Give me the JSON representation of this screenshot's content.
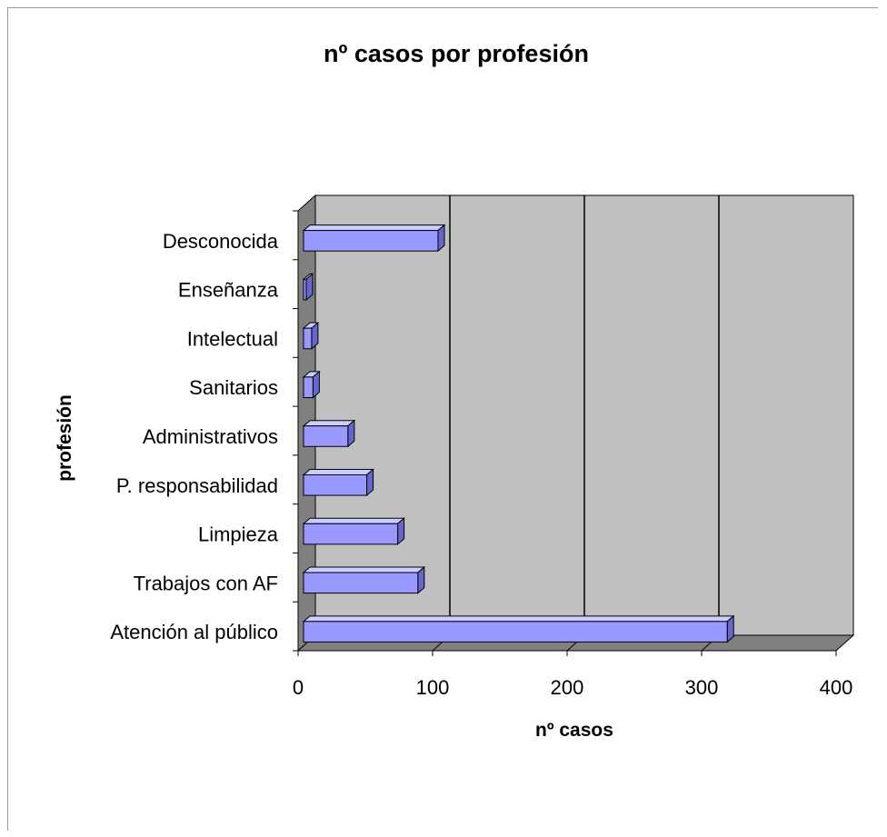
{
  "chart_data": {
    "type": "bar",
    "orientation": "horizontal",
    "style": "3d",
    "title": "nº casos por profesión",
    "xlabel": "nº casos",
    "ylabel": "profesión",
    "categories": [
      "Atención al público",
      "Trabajos con AF",
      "Limpieza",
      "P. responsabilidad",
      "Administrativos",
      "Sanitarios",
      "Intelectual",
      "Enseñanza",
      "Desconocida"
    ],
    "values": [
      315,
      85,
      70,
      47,
      33,
      7,
      6,
      2,
      100
    ],
    "xlim": [
      0,
      400
    ],
    "xticks": [
      "0",
      "100",
      "200",
      "300",
      "400"
    ],
    "grid": "vertical",
    "legend": "none",
    "colors": {
      "bar_front": "#9999ff",
      "bar_top": "#ccccff",
      "bar_side": "#6666cc",
      "back_wall": "#c0c0c0",
      "side_wall": "#808080",
      "floor": "#808080",
      "gridline": "#000000"
    }
  }
}
